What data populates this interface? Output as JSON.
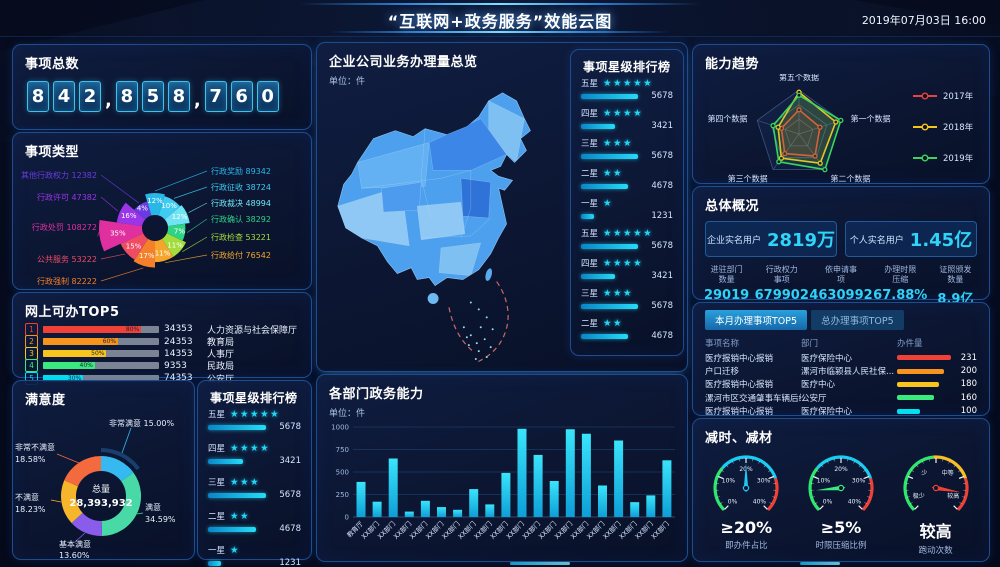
{
  "header": {
    "title": "“互联网+政务服务”效能云图",
    "datetime": "2019年07月03日  16:00"
  },
  "total_panel": {
    "title": "事项总数",
    "value": "842,858,760"
  },
  "map_panel": {
    "title": "企业公司业务办理量总览",
    "unit": "单位：件"
  },
  "overview_panel": {
    "title": "总体概况",
    "highlights": [
      {
        "label": "企业实名用户",
        "value": "2819万"
      },
      {
        "label": "个人实名用户",
        "value": "1.45亿"
      }
    ],
    "stats": [
      {
        "l1": "进驻部门",
        "l2": "数量",
        "value": "29019"
      },
      {
        "l1": "行政权力",
        "l2": "事项",
        "value": "679902"
      },
      {
        "l1": "依申请事",
        "l2": "项",
        "value": "4630992"
      },
      {
        "l1": "办理时限",
        "l2": "压缩",
        "value": "67.88%"
      },
      {
        "l1": "证照颁发",
        "l2": "数量",
        "value": "8.9亿"
      }
    ]
  },
  "chart_data": [
    {
      "id": "item-types",
      "type": "pie",
      "title": "事项类型",
      "slices": [
        {
          "label": "行政奖励",
          "value": 89342,
          "pct": "12%",
          "color": "#29b7e8"
        },
        {
          "label": "行政征收",
          "value": 38724,
          "pct": "10%",
          "color": "#3fccf0"
        },
        {
          "label": "行政裁决",
          "value": 48994,
          "pct": "12%",
          "color": "#71e4f4"
        },
        {
          "label": "行政确认",
          "value": 38292,
          "pct": "7%",
          "color": "#2ed386"
        },
        {
          "label": "行政检查",
          "value": 53221,
          "pct": "11%",
          "color": "#a4dc3c"
        },
        {
          "label": "行政给付",
          "value": 76542,
          "pct": "11%",
          "color": "#f5a52b"
        },
        {
          "label": "行政强制",
          "value": 82222,
          "pct": "17%",
          "color": "#f57f2a"
        },
        {
          "label": "公共服务",
          "value": 53222,
          "pct": "15%",
          "color": "#ef4b63"
        },
        {
          "label": "行政处罚",
          "value": 108272,
          "pct": "35%",
          "color": "#e0309f"
        },
        {
          "label": "行政许可",
          "value": 47382,
          "pct": "16%",
          "color": "#9a35e8"
        },
        {
          "label": "其他行政权力",
          "value": 12382,
          "pct": "4%",
          "color": "#6a3be0"
        }
      ]
    },
    {
      "id": "online-top5",
      "type": "bar",
      "title": "网上可办TOP5",
      "rows": [
        {
          "rank": "1",
          "pct": "80%",
          "value": 34353,
          "dept": "人力资源与社会保障厅",
          "color": "#ef4136"
        },
        {
          "rank": "2",
          "pct": "60%",
          "value": 24353,
          "dept": "教育局",
          "color": "#f7941e"
        },
        {
          "rank": "3",
          "pct": "50%",
          "value": 14353,
          "dept": "人事厅",
          "color": "#f7c51e"
        },
        {
          "rank": "4",
          "pct": "40%",
          "value": 9353,
          "dept": "民政局",
          "color": "#3bea7e"
        },
        {
          "rank": "5",
          "pct": "30%",
          "value": 74353,
          "dept": "公安厅",
          "color": "#00e4f0"
        }
      ]
    },
    {
      "id": "satisfaction",
      "type": "pie",
      "title": "满意度",
      "center": {
        "label": "总量",
        "value": "28,393,932"
      },
      "slices": [
        {
          "label": "非常满意",
          "value": 15.0,
          "pct": "15.00%",
          "color": "#35b9f0",
          "highlight": true
        },
        {
          "label": "满意",
          "value": 34.59,
          "pct": "34.59%",
          "color": "#49d9a6"
        },
        {
          "label": "基本满意",
          "value": 13.6,
          "pct": "13.60%",
          "color": "#8a5ceb"
        },
        {
          "label": "不满意",
          "value": 18.23,
          "pct": "18.23%",
          "color": "#f5b62c"
        },
        {
          "label": "非常不满意",
          "value": 18.58,
          "pct": "18.58%",
          "color": "#f26a3d"
        }
      ]
    },
    {
      "id": "star-ranking-side",
      "type": "bar",
      "title": "事项星级排行榜",
      "max": 5678,
      "rows": [
        {
          "label": "五星",
          "stars": 5,
          "value": 5678
        },
        {
          "label": "四星",
          "stars": 4,
          "value": 3421
        },
        {
          "label": "三星",
          "stars": 3,
          "value": 5678
        },
        {
          "label": "二星",
          "stars": 2,
          "value": 4678
        },
        {
          "label": "一星",
          "stars": 1,
          "value": 1231
        },
        {
          "label": "五星",
          "stars": 5,
          "value": 5678
        },
        {
          "label": "四星",
          "stars": 4,
          "value": 3421
        },
        {
          "label": "三星",
          "stars": 3,
          "value": 5678
        },
        {
          "label": "二星",
          "stars": 2,
          "value": 4678
        }
      ]
    },
    {
      "id": "star-ranking-small",
      "type": "bar",
      "title": "事项星级排行榜",
      "max": 5678,
      "rows": [
        {
          "label": "五星",
          "stars": 5,
          "value": 5678
        },
        {
          "label": "四星",
          "stars": 4,
          "value": 3421
        },
        {
          "label": "三星",
          "stars": 3,
          "value": 5678
        },
        {
          "label": "二星",
          "stars": 2,
          "value": 4678
        },
        {
          "label": "一星",
          "stars": 1,
          "value": 1231
        }
      ]
    },
    {
      "id": "dept-capability",
      "type": "bar",
      "title": "各部门政务能力",
      "unit": "单位：件",
      "ylim": [
        0,
        1000
      ],
      "yticks": [
        0,
        250,
        500,
        750,
        1000
      ],
      "bar_color": "#1ed1f2",
      "categories": [
        "教育厅",
        "XX部门",
        "XX部门",
        "XX部门",
        "XX部门",
        "XX部门",
        "XX部门",
        "XX部门",
        "XX部门",
        "XX部门",
        "XX部门",
        "XX部门",
        "XX部门",
        "XX部门",
        "XX部门",
        "XX部门",
        "XX部门",
        "XX部门",
        "XX部门",
        "XX部门"
      ],
      "values": [
        390,
        170,
        650,
        60,
        180,
        110,
        80,
        310,
        140,
        490,
        980,
        690,
        400,
        975,
        925,
        350,
        850,
        165,
        240,
        630
      ]
    },
    {
      "id": "capability-trend",
      "type": "radar",
      "title": "能力趋势",
      "axes": [
        "第一个数据",
        "第二个数据",
        "第三个数据",
        "第四个数据",
        "第五个数据"
      ],
      "max": 100,
      "series": [
        {
          "name": "2017年",
          "color": "#e8433c",
          "values": [
            50,
            62,
            55,
            42,
            55
          ]
        },
        {
          "name": "2018年",
          "color": "#f5c51e",
          "values": [
            88,
            82,
            68,
            50,
            95
          ]
        },
        {
          "name": "2019年",
          "color": "#3bd45e",
          "values": [
            100,
            100,
            78,
            62,
            88
          ]
        }
      ]
    },
    {
      "id": "handling-top5",
      "type": "table",
      "tabs": [
        {
          "label": "本月办理事项TOP5",
          "active": true
        },
        {
          "label": "总办理事项TOP5",
          "active": false
        }
      ],
      "headers": [
        "事项名称",
        "部门",
        "办件量"
      ],
      "rows": [
        {
          "name": "医疗报销中心报销",
          "dept": "医疗保险中心",
          "value": 231,
          "color": "#ef4136"
        },
        {
          "name": "户口迁移",
          "dept": "漯河市临颍县人民社保...",
          "value": 200,
          "color": "#f7941e"
        },
        {
          "name": "医疗报销中心报销",
          "dept": "医疗中心",
          "value": 180,
          "color": "#f7c51e"
        },
        {
          "name": "漯河市区交通肇事车辆后续处...",
          "dept": "公安厅",
          "value": 160,
          "color": "#3bea7e"
        },
        {
          "name": "医疗报销中心报销",
          "dept": "医疗保险中心",
          "value": 100,
          "color": "#00e4f0"
        }
      ]
    },
    {
      "id": "reduce-gauges",
      "type": "gauge",
      "title": "减时、减材",
      "gauges": [
        {
          "ticks": [
            "0%",
            "10%",
            "20%",
            "30%",
            "40%"
          ],
          "value": "≥20%",
          "label": "即办件占比",
          "needle_color": "#20c8f0",
          "needle_deg": 90,
          "segments": [
            [
              225,
              140,
              "#2ee86e"
            ],
            [
              140,
              18,
              "#18cdf2"
            ],
            [
              18,
              -45,
              "#ef4136"
            ]
          ]
        },
        {
          "ticks": [
            "0%",
            "10%",
            "20%",
            "30%",
            "40%"
          ],
          "value": "≥5%",
          "label": "时限压缩比例",
          "needle_color": "#3bea7e",
          "needle_deg": 185,
          "segments": [
            [
              225,
              140,
              "#2ee86e"
            ],
            [
              140,
              18,
              "#18cdf2"
            ],
            [
              18,
              -45,
              "#ef4136"
            ]
          ]
        },
        {
          "ticks": [
            "极少",
            "少",
            "中等",
            "较高"
          ],
          "value": "较高",
          "label": "跑动次数",
          "needle_color": "#ef4136",
          "needle_deg": -10,
          "segments": [
            [
              225,
              95,
              "#2ee86e"
            ],
            [
              95,
              18,
              "#f5c026"
            ],
            [
              18,
              -45,
              "#ef4136"
            ]
          ]
        }
      ]
    }
  ]
}
